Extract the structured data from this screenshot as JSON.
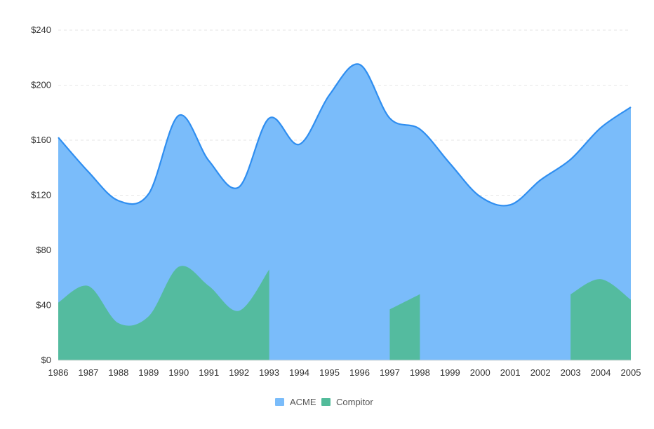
{
  "chart_data": {
    "type": "area",
    "title": "",
    "xlabel": "",
    "ylabel": "",
    "x": [
      "1986",
      "1987",
      "1988",
      "1989",
      "1990",
      "1991",
      "1992",
      "1993",
      "1994",
      "1995",
      "1996",
      "1997",
      "1998",
      "1999",
      "2000",
      "2001",
      "2002",
      "2003",
      "2004",
      "2005"
    ],
    "ylim": [
      0,
      240
    ],
    "yticks": [
      0,
      40,
      80,
      120,
      160,
      200,
      240
    ],
    "ytick_labels": [
      "$0",
      "$40",
      "$80",
      "$120",
      "$160",
      "$200",
      "$240"
    ],
    "grid": true,
    "legend_position": "bottom-center",
    "series": [
      {
        "name": "ACME",
        "color": "#2f8ef0",
        "fill": "#7abcfa",
        "values": [
          162,
          137,
          116,
          121,
          178,
          145,
          126,
          176,
          157,
          193,
          215,
          176,
          168,
          143,
          119,
          113,
          131,
          146,
          169,
          184
        ]
      },
      {
        "name": "Compitor",
        "color": "#3dba87",
        "fill": "#52bb9a",
        "values": [
          42,
          54,
          27,
          32,
          68,
          54,
          36,
          66,
          null,
          null,
          null,
          37,
          48,
          null,
          null,
          null,
          null,
          48,
          59,
          44
        ]
      }
    ]
  }
}
